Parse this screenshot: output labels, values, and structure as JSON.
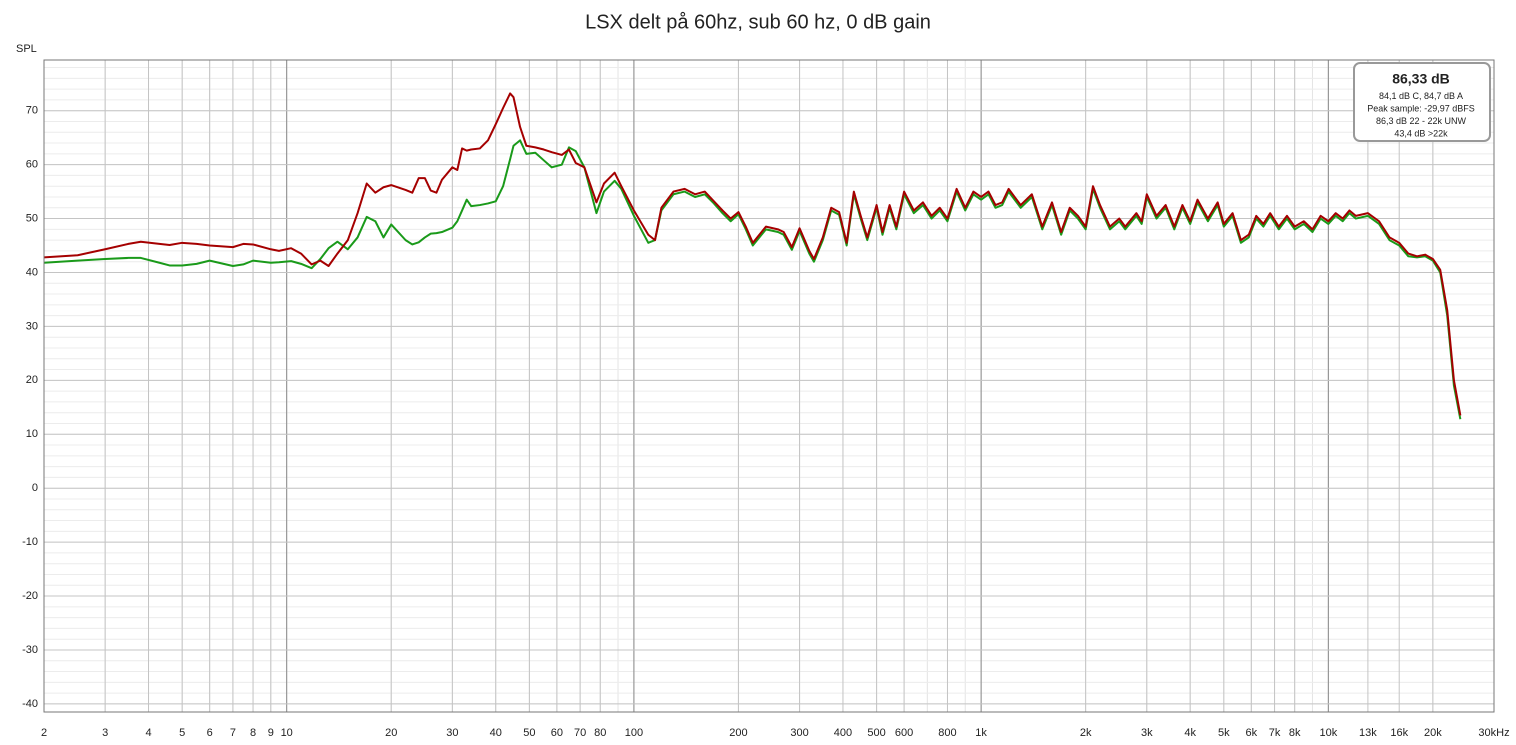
{
  "chart_data": {
    "type": "line",
    "title": "LSX delt på 60hz, sub 60 hz, 0 dB gain",
    "y_label": "SPL",
    "x_scale": "log",
    "grid": true,
    "minor_grid": true,
    "xlim": [
      2,
      30000
    ],
    "ylim": [
      -41.5,
      79.4
    ],
    "xticks": [
      2,
      3,
      4,
      5,
      6,
      7,
      8,
      9,
      10,
      20,
      30,
      40,
      50,
      60,
      70,
      80,
      100,
      200,
      300,
      400,
      500,
      600,
      800,
      {
        "value": 1000,
        "label": "1k"
      },
      {
        "value": 2000,
        "label": "2k"
      },
      {
        "value": 3000,
        "label": "3k"
      },
      {
        "value": 4000,
        "label": "4k"
      },
      {
        "value": 5000,
        "label": "5k"
      },
      {
        "value": 6000,
        "label": "6k"
      },
      {
        "value": 7000,
        "label": "7k"
      },
      {
        "value": 8000,
        "label": "8k"
      },
      {
        "value": 10000,
        "label": "10k"
      },
      {
        "value": 13000,
        "label": "13k"
      },
      {
        "value": 16000,
        "label": "16k"
      },
      {
        "value": 20000,
        "label": "20k"
      },
      {
        "value": 30000,
        "label": "30kHz"
      }
    ],
    "yticks": [
      70,
      60,
      50,
      40,
      30,
      20,
      10,
      0,
      -10,
      -20,
      -30,
      -40
    ],
    "info": [
      "86,33 dB",
      "84,1 dB C, 84,7 dB A",
      "Peak sample: -29,97 dBFS",
      "86,3 dB 22 - 22k UNW",
      "43,4 dB >22k"
    ],
    "x": [
      2,
      2.5,
      3,
      3.5,
      3.8,
      4.3,
      4.6,
      5,
      5.5,
      6,
      7,
      7.5,
      8,
      9,
      9.5,
      10.3,
      11,
      11.8,
      12.5,
      13.2,
      14,
      15,
      16,
      17,
      18,
      19,
      20,
      22,
      23,
      24,
      25,
      26,
      27,
      28,
      30,
      31,
      32,
      33,
      34,
      36,
      38,
      40,
      42,
      44,
      45,
      47,
      49,
      52,
      55,
      58,
      62,
      65,
      68,
      72,
      78,
      82,
      88,
      92,
      100,
      110,
      115,
      120,
      130,
      140,
      150,
      160,
      170,
      180,
      190,
      200,
      210,
      220,
      240,
      260,
      270,
      285,
      300,
      320,
      330,
      350,
      370,
      390,
      410,
      430,
      450,
      470,
      500,
      520,
      545,
      570,
      600,
      640,
      680,
      720,
      760,
      800,
      850,
      900,
      950,
      1000,
      1050,
      1100,
      1150,
      1200,
      1300,
      1400,
      1500,
      1600,
      1700,
      1800,
      1900,
      2000,
      2100,
      2200,
      2350,
      2500,
      2600,
      2800,
      2900,
      3000,
      3200,
      3400,
      3600,
      3800,
      4000,
      4200,
      4500,
      4800,
      5000,
      5300,
      5600,
      5900,
      6200,
      6500,
      6800,
      7200,
      7600,
      8000,
      8500,
      9000,
      9500,
      10000,
      10500,
      11000,
      11500,
      12000,
      13000,
      14000,
      15000,
      16000,
      17000,
      18000,
      19000,
      20000,
      21000,
      22000,
      23000,
      24000
    ],
    "series": [
      {
        "color": "#1a9a1a",
        "values": [
          41.8,
          42.2,
          42.5,
          42.7,
          42.7,
          41.8,
          41.3,
          41.3,
          41.6,
          42.2,
          41.2,
          41.5,
          42.2,
          41.8,
          41.9,
          42.1,
          41.6,
          40.8,
          42.5,
          44.5,
          45.7,
          44.3,
          46.5,
          50.3,
          49.5,
          46.5,
          48.9,
          46,
          45.2,
          45.6,
          46.5,
          47.2,
          47.3,
          47.5,
          48.3,
          49.5,
          51.5,
          53.5,
          52.3,
          52.5,
          52.8,
          53.2,
          56,
          61,
          63.5,
          64.5,
          62,
          62.2,
          60.8,
          59.5,
          60,
          63.2,
          62.5,
          59.5,
          51,
          55,
          57,
          55.5,
          50.5,
          45.5,
          46,
          51.5,
          54.5,
          55,
          54,
          54.5,
          52.8,
          51,
          49.5,
          50.8,
          48,
          45,
          48,
          47.5,
          47,
          44.2,
          47.7,
          43.5,
          42,
          46,
          51.5,
          50.7,
          45,
          54.5,
          50,
          46,
          52,
          47,
          52,
          48,
          54.5,
          51,
          52.5,
          50,
          51.5,
          49.5,
          55,
          51.5,
          54.5,
          53.5,
          54.5,
          52,
          52.5,
          55,
          52,
          54,
          48,
          52.5,
          47,
          51.5,
          50,
          48,
          55.5,
          52,
          48,
          49.5,
          48,
          50.5,
          49,
          54,
          50,
          52,
          48,
          52,
          49,
          53,
          49.5,
          52.5,
          48.5,
          50.5,
          45.5,
          46.5,
          50,
          48.5,
          50.5,
          48,
          50,
          48,
          49,
          47.5,
          50,
          49,
          50.5,
          49.5,
          51,
          50,
          50.5,
          49,
          46,
          45,
          43,
          42.8,
          43,
          42.2,
          40,
          32,
          19,
          12.8
        ]
      },
      {
        "color": "#a50000",
        "values": [
          42.8,
          43.2,
          44.3,
          45.3,
          45.7,
          45.3,
          45.1,
          45.5,
          45.3,
          45.0,
          44.7,
          45.3,
          45.2,
          44.3,
          44.0,
          44.5,
          43.5,
          41.5,
          42.2,
          41.2,
          43.5,
          46,
          51,
          56.5,
          54.8,
          55.8,
          56.2,
          55.3,
          54.8,
          57.5,
          57.5,
          55.2,
          54.8,
          57.2,
          59.5,
          59.0,
          63,
          62.6,
          62.8,
          63,
          64.5,
          67.5,
          70.5,
          73.2,
          72.5,
          67,
          63.5,
          63.2,
          62.8,
          62.3,
          61.8,
          62.8,
          60.3,
          59.5,
          53,
          56.5,
          58.5,
          56,
          51.5,
          47,
          46,
          52,
          55,
          55.5,
          54.5,
          55,
          53.2,
          51.5,
          50,
          51.2,
          48.5,
          45.5,
          48.5,
          48,
          47.5,
          44.7,
          48.2,
          44,
          42.5,
          46.5,
          52,
          51.2,
          45.5,
          55,
          50.5,
          46.5,
          52.5,
          47.5,
          52.5,
          48.5,
          55,
          51.5,
          53,
          50.5,
          52,
          50,
          55.5,
          52,
          55,
          54,
          55,
          52.5,
          53,
          55.5,
          52.5,
          54.5,
          48.5,
          53,
          47.5,
          52,
          50.5,
          48.5,
          56,
          52.5,
          48.5,
          50,
          48.5,
          51,
          49.5,
          54.5,
          50.5,
          52.5,
          48.5,
          52.5,
          49.5,
          53.5,
          50,
          53,
          49,
          51,
          46,
          47,
          50.5,
          49,
          51,
          48.5,
          50.5,
          48.5,
          49.5,
          48,
          50.5,
          49.5,
          51,
          50,
          51.5,
          50.5,
          51,
          49.5,
          46.5,
          45.5,
          43.5,
          43,
          43.3,
          42.5,
          40.5,
          33,
          20,
          13.5
        ]
      }
    ]
  }
}
